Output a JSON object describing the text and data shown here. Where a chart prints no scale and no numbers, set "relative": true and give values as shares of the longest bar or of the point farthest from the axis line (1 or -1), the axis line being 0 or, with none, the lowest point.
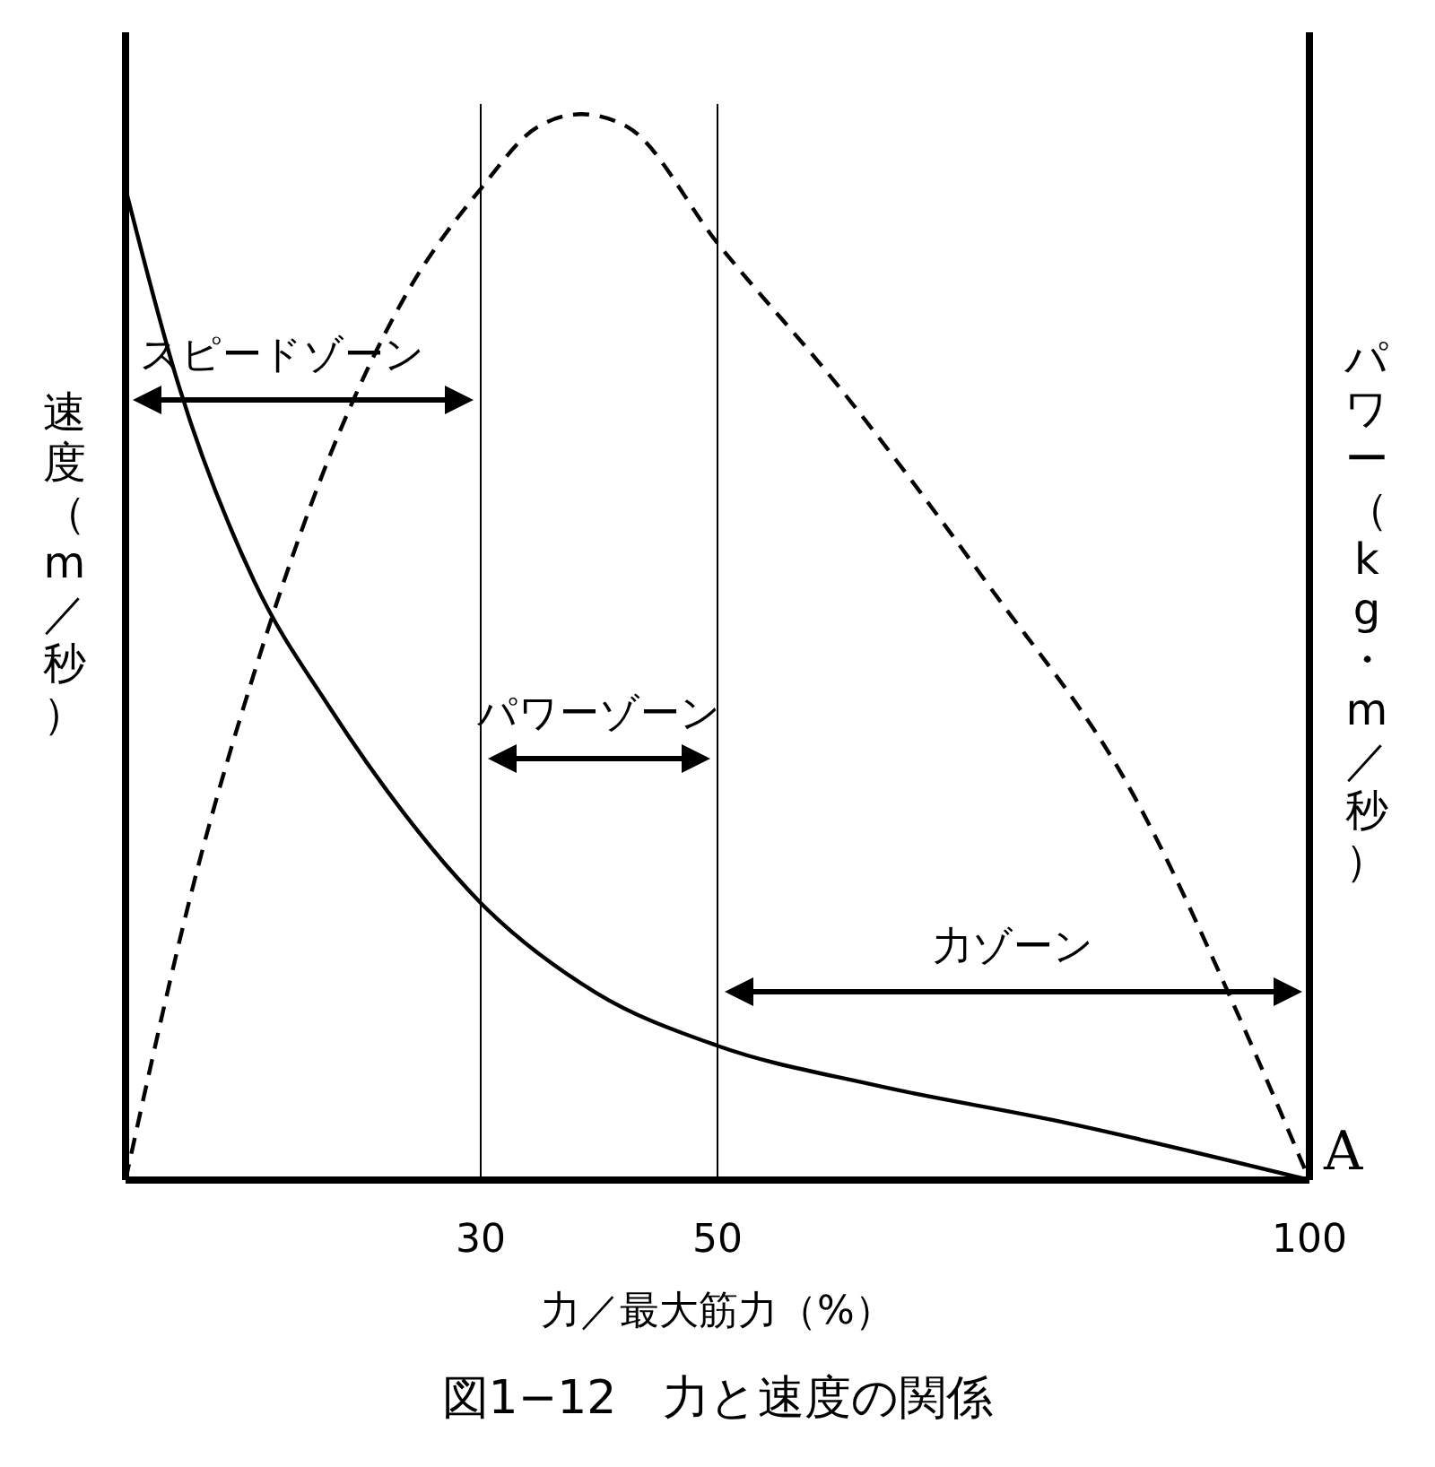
{
  "chart_data": {
    "type": "line",
    "relative": true,
    "title": "図1−12　力と速度の関係",
    "xlabel": "力／最大筋力（%）",
    "ylabel": "速度（m／秒）",
    "y2label": "パワー（kg・m／秒）",
    "xlim": [
      0,
      100
    ],
    "xticks": [
      30,
      50,
      100
    ],
    "series": [
      {
        "color": "#000000",
        "line_style": "solid",
        "x": [
          0,
          4.5,
          10.9,
          17.2,
          23.6,
          30,
          39.7,
          50,
          63.3,
          78.9,
          100
        ],
        "values": [
          0.93,
          0.745,
          0.561,
          0.444,
          0.343,
          0.26,
          0.176,
          0.126,
          0.089,
          0.055,
          0
        ]
      },
      {
        "color": "#000000",
        "line_style": "dashed",
        "x": [
          0,
          6.1,
          10.9,
          17.2,
          23.6,
          30,
          34.8,
          38.5,
          42.4,
          50,
          60.2,
          72.7,
          85.2,
          94.5,
          100
        ],
        "values": [
          0,
          0.293,
          0.477,
          0.678,
          0.829,
          0.93,
          0.988,
          1,
          0.988,
          0.879,
          0.745,
          0.561,
          0.36,
          0.142,
          0
        ]
      }
    ],
    "ref_lines": [
      {
        "axis": "x",
        "value": 30,
        "color": "#000000"
      },
      {
        "axis": "x",
        "value": 50,
        "color": "#000000"
      }
    ],
    "annotations": [
      "スピードゾーン",
      "パワーゾーン",
      "力ゾーン",
      {
        "text": "A",
        "x": 100,
        "y": 0
      }
    ]
  }
}
